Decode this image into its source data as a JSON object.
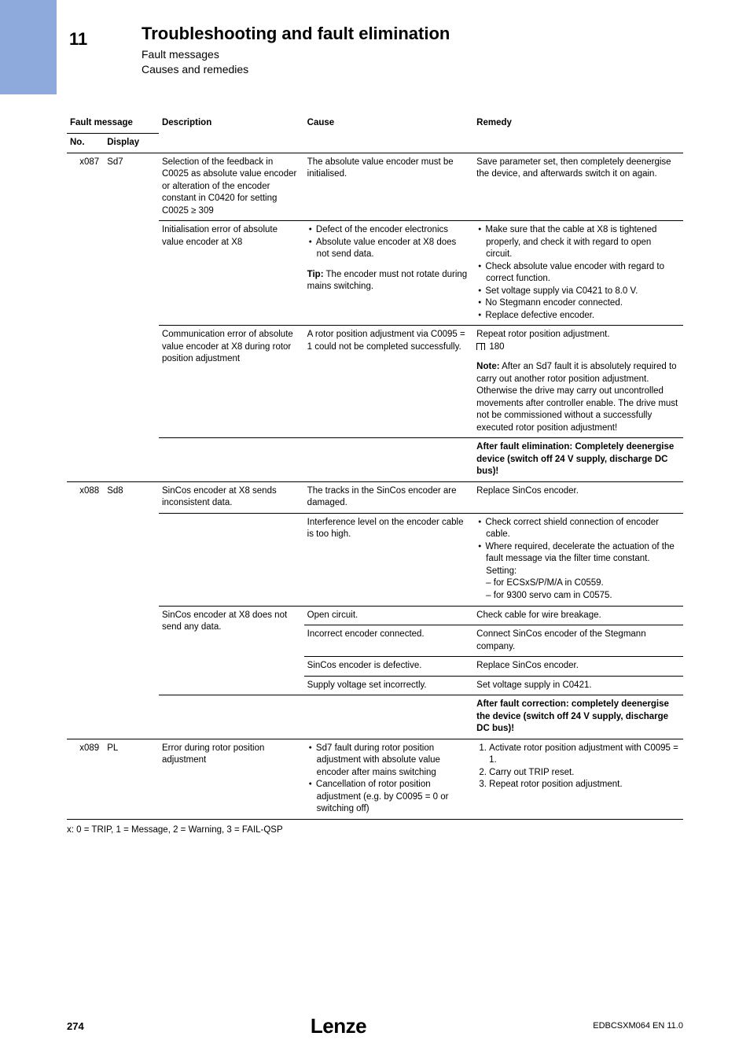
{
  "header": {
    "chapter_no": "11",
    "title": "Troubleshooting and fault elimination",
    "subtitle1": "Fault messages",
    "subtitle2": "Causes and remedies"
  },
  "columns": {
    "fault_msg": "Fault message",
    "no": "No.",
    "display": "Display",
    "description": "Description",
    "cause": "Cause",
    "remedy": "Remedy"
  },
  "col_widths": {
    "no": "46px",
    "display": "68px",
    "desc": "180px",
    "cause": "210px",
    "remedy": "260px"
  },
  "rows": [
    {
      "no": "x087",
      "display": "Sd7",
      "description": "Selection of the feedback in C0025 as absolute value encoder or alteration of the encoder constant in C0420 for setting C0025 ≥ 309",
      "cause": "The absolute value encoder must be initialised.",
      "remedy": "Save parameter set, then completely deenergise the device, and afterwards switch it on again."
    },
    {
      "no": "",
      "display": "",
      "description": "Initialisation error of absolute value encoder at X8",
      "cause_list": [
        "Defect of the encoder electronics",
        "Absolute value encoder at X8 does not send data."
      ],
      "cause_tip_label": "Tip:",
      "cause_tip": " The encoder must not rotate during mains switching.",
      "remedy_list": [
        "Make sure that the cable at X8 is tightened properly, and check it with regard to open circuit.",
        "Check absolute value encoder with regard to correct function.",
        "Set voltage supply via C0421 to 8.0 V.",
        "No Stegmann encoder connected.",
        "Replace defective encoder."
      ]
    },
    {
      "no": "",
      "display": "",
      "description": "Communication error of absolute value encoder at X8 during rotor position adjustment",
      "cause": "A rotor position adjustment via C0095 = 1 could not be completed successfully.",
      "remedy_pre": "Repeat rotor position adjustment.",
      "remedy_ref": "180",
      "remedy_note_label": "Note:",
      "remedy_note": " After an Sd7 fault it is absolutely required to carry out another rotor position adjustment. Otherwise the drive may carry out uncontrolled movements after controller enable. The drive must not be commissioned without a successfully executed rotor position adjustment!"
    },
    {
      "no": "",
      "display": "",
      "description": "",
      "cause": "",
      "remedy_bold": "After fault elimination: Completely deenergise device (switch off 24 V supply, discharge DC bus)!"
    },
    {
      "no": "x088",
      "display": "Sd8",
      "description": "SinCos encoder at X8 sends inconsistent data.",
      "cause": "The tracks in the SinCos encoder are damaged.",
      "remedy": "Replace SinCos encoder."
    },
    {
      "no": "",
      "display": "",
      "description": "",
      "cause": "Interference level on the encoder cable is too high.",
      "remedy_list": [
        "Check correct shield connection of encoder cable.",
        "Where required, decelerate the actuation of the fault message via the filter time constant. Setting:\n– for ECSxS/P/M/A in C0559.\n– for 9300 servo cam in C0575."
      ]
    },
    {
      "no": "",
      "display": "",
      "description": "SinCos encoder at X8 does not send any data.",
      "cause": "Open circuit.",
      "remedy": "Check cable for wire breakage.",
      "desc_rowspan": 4
    },
    {
      "no": "",
      "display": "",
      "description": "",
      "cause": "Incorrect encoder connected.",
      "remedy": "Connect SinCos encoder of the Stegmann company."
    },
    {
      "no": "",
      "display": "",
      "description": "",
      "cause": "SinCos encoder is defective.",
      "remedy": "Replace SinCos encoder."
    },
    {
      "no": "",
      "display": "",
      "description": "",
      "cause": "Supply voltage set incorrectly.",
      "remedy": "Set voltage supply in C0421."
    },
    {
      "no": "",
      "display": "",
      "description": "",
      "cause": "",
      "remedy_bold": "After fault correction: completely deenergise the device (switch off 24 V supply, discharge DC bus)!"
    },
    {
      "no": "x089",
      "display": "PL",
      "description": "Error during rotor position adjustment",
      "cause_list": [
        "Sd7 fault during rotor position adjustment with absolute value encoder after mains switching",
        "Cancellation of rotor position adjustment (e.g. by C0095 = 0 or switching off)"
      ],
      "remedy_ol": [
        "Activate rotor position adjustment with C0095 = 1.",
        "Carry out TRIP reset.",
        "Repeat rotor position adjustment."
      ]
    }
  ],
  "footnote": "x: 0 = TRIP, 1 = Message, 2 = Warning, 3 = FAIL-QSP",
  "footer": {
    "page": "274",
    "brand": "Lenze",
    "doc_id": "EDBCSXM064 EN 11.0"
  }
}
